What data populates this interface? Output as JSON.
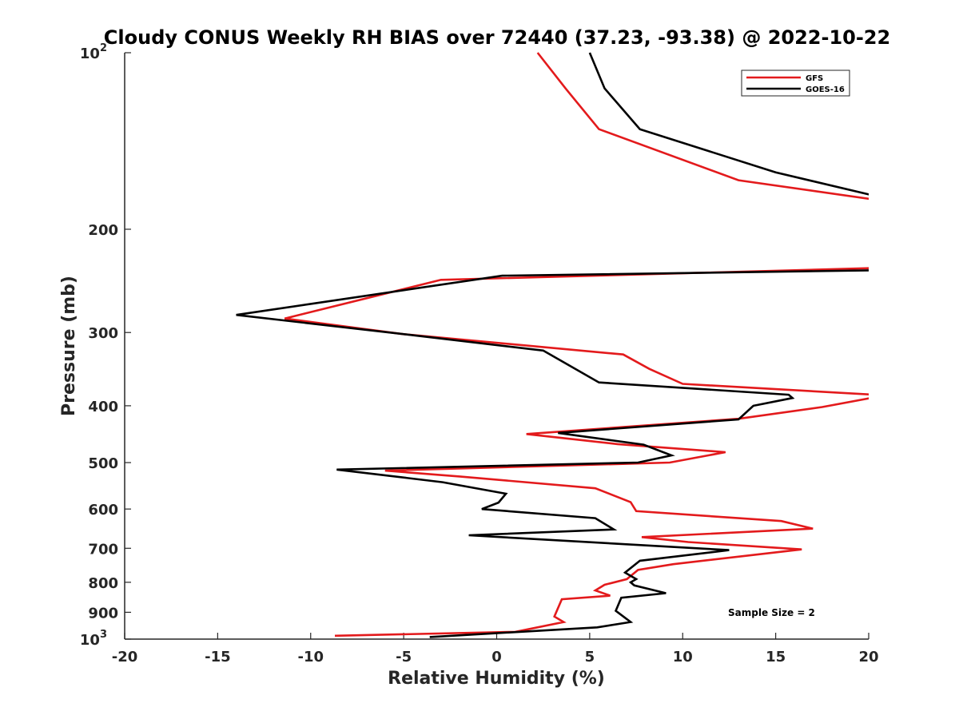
{
  "chart_data": {
    "type": "line",
    "title": "Cloudy CONUS Weekly RH BIAS over 72440 (37.23, -93.38) @ 2022-10-22",
    "xlabel": "Relative Humidity (%)",
    "ylabel": "Pressure (mb)",
    "xlim": [
      -20,
      20
    ],
    "ylim": [
      100,
      1000
    ],
    "y_scale": "log",
    "y_reversed": true,
    "grid": false,
    "legend_position": "top-right",
    "x_ticks": [
      "-20",
      "-15",
      "-10",
      "-5",
      "0",
      "5",
      "10",
      "15",
      "20"
    ],
    "y_ticks": [
      {
        "value": 100,
        "base": "10",
        "exp": "2"
      },
      {
        "value": 200,
        "label": "200"
      },
      {
        "value": 300,
        "label": "300"
      },
      {
        "value": 400,
        "label": "400"
      },
      {
        "value": 500,
        "label": "500"
      },
      {
        "value": 600,
        "label": "600"
      },
      {
        "value": 700,
        "label": "700"
      },
      {
        "value": 800,
        "label": "800"
      },
      {
        "value": 900,
        "label": "900"
      },
      {
        "value": 1000,
        "base": "10",
        "exp": "3"
      }
    ],
    "series": [
      {
        "name": "GFS",
        "color": "#e31a1c",
        "points": [
          {
            "p": 100,
            "x": 2.2
          },
          {
            "p": 115,
            "x": 3.7
          },
          {
            "p": 135,
            "x": 5.5
          },
          {
            "p": 165,
            "x": 13.0
          },
          {
            "p": 178,
            "x": 20.3
          },
          {
            "p": 233,
            "x": 20.2
          },
          {
            "p": 244,
            "x": -3.0
          },
          {
            "p": 284,
            "x": -11.4
          },
          {
            "p": 302,
            "x": -5.0
          },
          {
            "p": 327,
            "x": 6.8
          },
          {
            "p": 346,
            "x": 8.2
          },
          {
            "p": 367,
            "x": 10.0
          },
          {
            "p": 383,
            "x": 20.3
          },
          {
            "p": 387,
            "x": 20.3
          },
          {
            "p": 402,
            "x": 17.5
          },
          {
            "p": 421,
            "x": 13.0
          },
          {
            "p": 447,
            "x": 1.6
          },
          {
            "p": 465,
            "x": 6.5
          },
          {
            "p": 480,
            "x": 12.3
          },
          {
            "p": 500,
            "x": 9.3
          },
          {
            "p": 516,
            "x": -6.0
          },
          {
            "p": 528,
            "x": -2.0
          },
          {
            "p": 553,
            "x": 5.3
          },
          {
            "p": 584,
            "x": 7.2
          },
          {
            "p": 605,
            "x": 7.5
          },
          {
            "p": 629,
            "x": 15.3
          },
          {
            "p": 648,
            "x": 17.0
          },
          {
            "p": 670,
            "x": 7.8
          },
          {
            "p": 683,
            "x": 10.3
          },
          {
            "p": 703,
            "x": 16.4
          },
          {
            "p": 745,
            "x": 9.5
          },
          {
            "p": 762,
            "x": 7.6
          },
          {
            "p": 790,
            "x": 7.0
          },
          {
            "p": 808,
            "x": 5.8
          },
          {
            "p": 826,
            "x": 5.3
          },
          {
            "p": 843,
            "x": 6.1
          },
          {
            "p": 855,
            "x": 3.5
          },
          {
            "p": 915,
            "x": 3.1
          },
          {
            "p": 935,
            "x": 3.6
          },
          {
            "p": 972,
            "x": 1.0
          },
          {
            "p": 987,
            "x": -8.7
          }
        ]
      },
      {
        "name": "GOES-16",
        "color": "#000000",
        "points": [
          {
            "p": 100,
            "x": 5.0
          },
          {
            "p": 115,
            "x": 5.8
          },
          {
            "p": 135,
            "x": 7.7
          },
          {
            "p": 160,
            "x": 15.0
          },
          {
            "p": 175,
            "x": 20.2
          },
          {
            "p": 235,
            "x": 20.2
          },
          {
            "p": 240,
            "x": 0.3
          },
          {
            "p": 280,
            "x": -14.0
          },
          {
            "p": 304,
            "x": -4.2
          },
          {
            "p": 322,
            "x": 2.5
          },
          {
            "p": 365,
            "x": 5.5
          },
          {
            "p": 383,
            "x": 15.7
          },
          {
            "p": 388,
            "x": 15.9
          },
          {
            "p": 400,
            "x": 13.8
          },
          {
            "p": 422,
            "x": 13.0
          },
          {
            "p": 445,
            "x": 3.3
          },
          {
            "p": 466,
            "x": 7.9
          },
          {
            "p": 486,
            "x": 9.4
          },
          {
            "p": 500,
            "x": 7.6
          },
          {
            "p": 514,
            "x": -8.6
          },
          {
            "p": 540,
            "x": -2.9
          },
          {
            "p": 565,
            "x": 0.5
          },
          {
            "p": 585,
            "x": 0.1
          },
          {
            "p": 600,
            "x": -0.8
          },
          {
            "p": 622,
            "x": 5.3
          },
          {
            "p": 650,
            "x": 6.3
          },
          {
            "p": 665,
            "x": -1.5
          },
          {
            "p": 705,
            "x": 12.5
          },
          {
            "p": 735,
            "x": 7.7
          },
          {
            "p": 770,
            "x": 6.9
          },
          {
            "p": 790,
            "x": 7.5
          },
          {
            "p": 800,
            "x": 7.2
          },
          {
            "p": 810,
            "x": 7.4
          },
          {
            "p": 835,
            "x": 9.1
          },
          {
            "p": 850,
            "x": 6.7
          },
          {
            "p": 895,
            "x": 6.4
          },
          {
            "p": 935,
            "x": 7.2
          },
          {
            "p": 955,
            "x": 5.4
          },
          {
            "p": 992,
            "x": -3.6
          }
        ]
      }
    ],
    "annotations": [
      "Sample Size = 2"
    ]
  }
}
